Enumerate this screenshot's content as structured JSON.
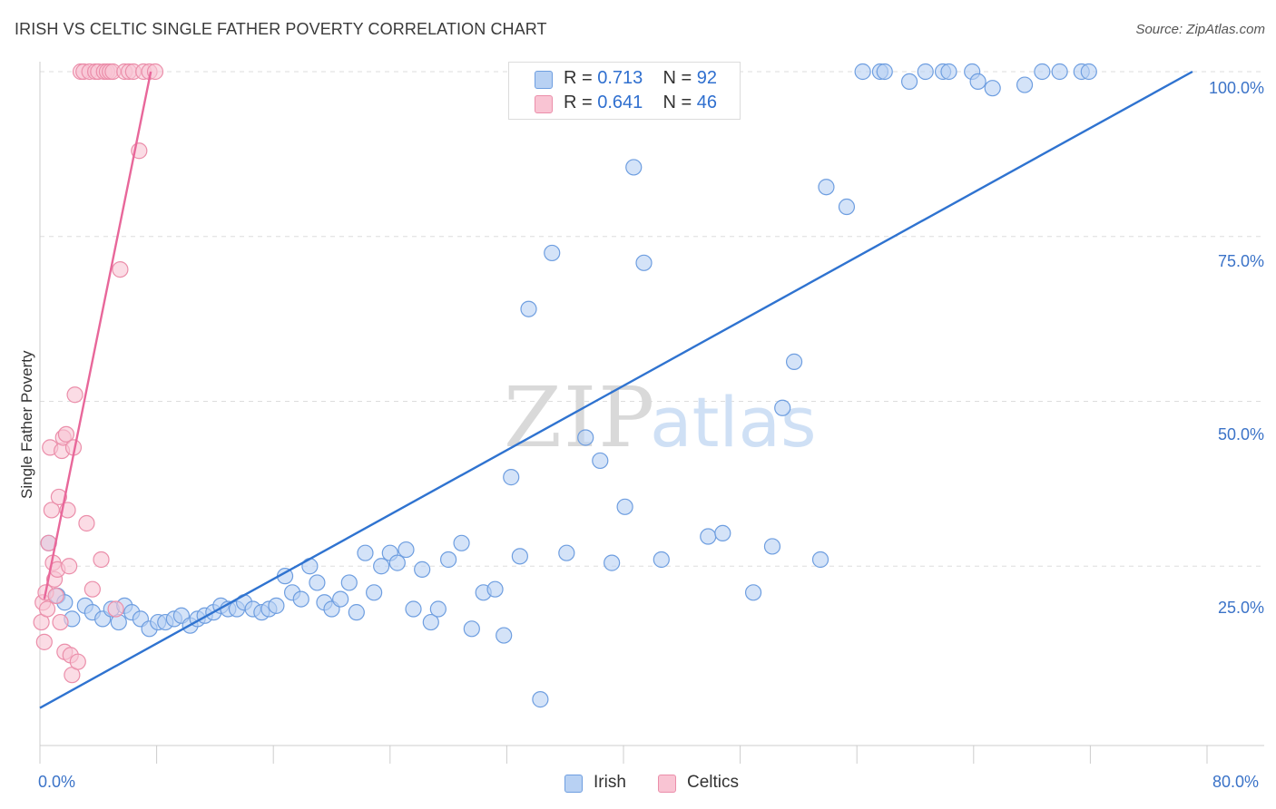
{
  "title": "IRISH VS CELTIC SINGLE FATHER POVERTY CORRELATION CHART",
  "source": "Source: ZipAtlas.com",
  "watermark": {
    "zip": "ZIP",
    "atlas": "atlas"
  },
  "colors": {
    "irish_fill": "#b8d1f3",
    "irish_stroke": "#6e9ee0",
    "irish_line": "#2f73d0",
    "celtics_fill": "#f9c4d3",
    "celtics_stroke": "#eb8eaa",
    "celtics_line": "#e8679a",
    "tick_label": "#3b73c8",
    "grid": "#dddddd"
  },
  "legend_top": {
    "irish": {
      "r_label": "R = ",
      "r_value": "0.713",
      "n_label": "N = ",
      "n_value": "92"
    },
    "celtics": {
      "r_label": "R = ",
      "r_value": "0.641",
      "n_label": "N = ",
      "n_value": "46"
    }
  },
  "legend_bottom": {
    "irish": "Irish",
    "celtics": "Celtics"
  },
  "x_ticks": {
    "min_label": "0.0%",
    "max_label": "80.0%"
  },
  "y_ticks": [
    "100.0%",
    "75.0%",
    "50.0%",
    "25.0%"
  ],
  "chart_data": {
    "type": "scatter",
    "title": "IRISH VS CELTIC SINGLE FATHER POVERTY CORRELATION CHART",
    "xlabel": "",
    "ylabel": "Single Father Poverty",
    "xlim": [
      0,
      80
    ],
    "ylim": [
      0,
      100
    ],
    "x_unit": "%",
    "y_unit": "%",
    "grid": true,
    "y_gridlines": [
      25,
      50,
      75,
      100
    ],
    "legend_placement": "bottom-center",
    "series": [
      {
        "name": "Irish",
        "R": 0.713,
        "N": 92,
        "trendline": {
          "x": [
            0,
            79
          ],
          "y": [
            3.5,
            100
          ]
        },
        "x": [
          0.6,
          1.2,
          1.7,
          2.2,
          3.1,
          3.6,
          4.3,
          4.9,
          5.4,
          5.8,
          6.3,
          6.9,
          7.5,
          8.1,
          8.6,
          9.2,
          9.7,
          10.3,
          10.8,
          11.3,
          11.9,
          12.4,
          12.9,
          13.5,
          14.0,
          14.6,
          15.2,
          15.7,
          16.2,
          16.8,
          17.3,
          17.9,
          18.5,
          19.0,
          19.5,
          20.0,
          20.6,
          21.2,
          21.7,
          22.3,
          22.9,
          23.4,
          24.0,
          24.5,
          25.1,
          25.6,
          26.2,
          26.8,
          27.3,
          28.0,
          28.9,
          29.6,
          30.4,
          31.2,
          31.8,
          32.3,
          32.9,
          33.5,
          34.3,
          35.1,
          36.1,
          37.4,
          38.4,
          39.2,
          40.1,
          40.7,
          41.4,
          42.6,
          45.8,
          46.8,
          48.9,
          50.2,
          50.9,
          51.7,
          53.5,
          53.9,
          55.3,
          56.4,
          57.6,
          57.9,
          59.6,
          60.7,
          61.9,
          62.3,
          63.9,
          64.3,
          65.3,
          67.5,
          68.7,
          69.9,
          71.4,
          71.9
        ],
        "y": [
          28.5,
          20.5,
          19.5,
          17.0,
          19.0,
          18.0,
          17.0,
          18.5,
          16.5,
          19.0,
          18.0,
          17.0,
          15.5,
          16.5,
          16.5,
          17.0,
          17.5,
          16.0,
          17.0,
          17.5,
          18.0,
          19.0,
          18.5,
          18.5,
          19.5,
          18.5,
          18.0,
          18.5,
          19.0,
          23.5,
          21.0,
          20.0,
          25.0,
          22.5,
          19.5,
          18.5,
          20.0,
          22.5,
          18.0,
          27.0,
          21.0,
          25.0,
          27.0,
          25.5,
          27.5,
          18.5,
          24.5,
          16.5,
          18.5,
          26.0,
          28.5,
          15.5,
          21.0,
          21.5,
          14.5,
          38.5,
          26.5,
          64.0,
          4.8,
          72.5,
          27.0,
          44.5,
          41.0,
          25.5,
          34.0,
          85.5,
          71.0,
          26.0,
          29.5,
          30.0,
          21.0,
          28.0,
          49.0,
          56.0,
          26.0,
          82.5,
          79.5,
          100.0,
          100.0,
          100.0,
          98.5,
          100.0,
          100.0,
          100.0,
          100.0,
          98.5,
          97.5,
          98.0,
          100.0,
          100.0,
          100.0,
          100.0
        ]
      },
      {
        "name": "Celtics",
        "R": 0.641,
        "N": 46,
        "trendline": {
          "x": [
            0.3,
            7.6
          ],
          "y": [
            20.0,
            100
          ]
        },
        "x": [
          0.1,
          0.2,
          0.3,
          0.4,
          0.5,
          0.6,
          0.7,
          0.8,
          0.9,
          1.0,
          1.1,
          1.2,
          1.3,
          1.4,
          1.5,
          1.6,
          1.7,
          1.8,
          1.9,
          2.0,
          2.1,
          2.2,
          2.3,
          2.4,
          2.6,
          2.8,
          3.0,
          3.2,
          3.4,
          3.6,
          3.8,
          4.0,
          4.2,
          4.4,
          4.6,
          4.8,
          5.0,
          5.2,
          5.5,
          5.8,
          6.1,
          6.4,
          6.8,
          7.1,
          7.5,
          7.9
        ],
        "y": [
          16.5,
          19.5,
          13.5,
          21.0,
          18.5,
          28.5,
          43.0,
          33.5,
          25.5,
          23.0,
          20.5,
          24.5,
          35.5,
          16.5,
          42.5,
          44.5,
          12.0,
          45.0,
          33.5,
          25.0,
          11.5,
          8.5,
          43.0,
          51.0,
          10.5,
          100.0,
          100.0,
          31.5,
          100.0,
          21.5,
          100.0,
          100.0,
          26.0,
          100.0,
          100.0,
          100.0,
          100.0,
          18.5,
          70.0,
          100.0,
          100.0,
          100.0,
          88.0,
          100.0,
          100.0,
          100.0
        ]
      }
    ]
  }
}
